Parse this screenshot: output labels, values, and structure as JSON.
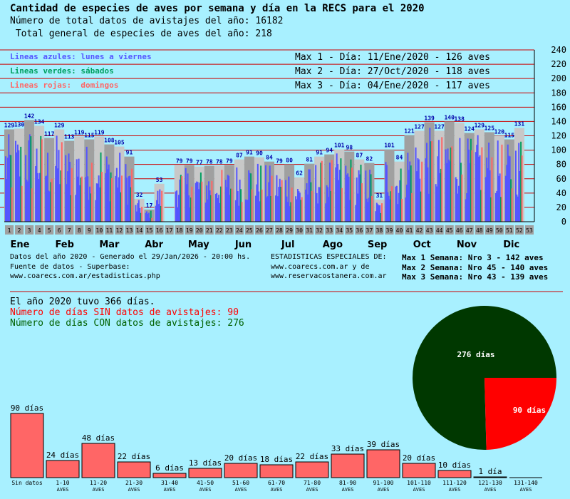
{
  "header": {
    "title": "Cantidad de especies de aves por semana y día en la RECS para el 2020",
    "line2": "Número de total datos de avistajes del año: 16182",
    "line3": " Total general de especies de aves del año: 218"
  },
  "legend": {
    "blue": "Lineas azules: lunes a viernes",
    "green": "Lineas verdes: sábados",
    "red": "Lineas rojas:  domingos"
  },
  "max_days": [
    "Max 1 - Día: 11/Ene/2020 - 126 aves",
    "Max 2 - Día: 27/Oct/2020 - 118 aves",
    "Max 3 - Día: 04/Ene/2020 - 117 aves"
  ],
  "colors": {
    "background": "#a8f0ff",
    "blue": "#5555ff",
    "green": "#00a060",
    "red": "#ff6666",
    "bar_dark": "#a0a0a0",
    "bar_light": "#c8c8c8",
    "gridline": "#cc0000",
    "pie_green": "#003800",
    "pie_red": "#ff0000",
    "hist_bar": "#ff6666"
  },
  "chart_data": [
    {
      "type": "bar",
      "ylim": [
        0,
        240
      ],
      "yticks": [
        0,
        20,
        40,
        60,
        80,
        100,
        120,
        140,
        160,
        180,
        200,
        220,
        240
      ],
      "weeks": [
        "1",
        "2",
        "3",
        "4",
        "5",
        "6",
        "7",
        "8",
        "9",
        "10",
        "11",
        "12",
        "13",
        "14",
        "15",
        "16",
        "17",
        "18",
        "19",
        "20",
        "21",
        "22",
        "23",
        "24",
        "25",
        "26",
        "27",
        "28",
        "29",
        "30",
        "31",
        "32",
        "33",
        "34",
        "35",
        "36",
        "37",
        "38",
        "39",
        "40",
        "41",
        "42",
        "43",
        "44",
        "45",
        "46",
        "47",
        "48",
        "49",
        "50",
        "51",
        "52",
        "53"
      ],
      "weekly_species": [
        129,
        130,
        142,
        134,
        117,
        129,
        113,
        119,
        115,
        119,
        108,
        105,
        91,
        32,
        17,
        53,
        0,
        79,
        79,
        77,
        78,
        78,
        79,
        87,
        91,
        90,
        84,
        79,
        80,
        62,
        81,
        91,
        94,
        101,
        98,
        87,
        82,
        31,
        101,
        84,
        121,
        127,
        139,
        127,
        140,
        138,
        124,
        129,
        125,
        120,
        115,
        131,
        0
      ],
      "weekly_labels": [
        "129",
        "130",
        "142",
        "134",
        "117",
        "129",
        "113",
        "119",
        "115",
        "119",
        "108",
        "105",
        "91",
        "32",
        "17",
        "53",
        "",
        "79",
        "79",
        "77",
        "78",
        "78",
        "79",
        "87",
        "91",
        "90",
        "84",
        "79",
        "80",
        "62",
        "81",
        "91",
        "94",
        "101",
        "98",
        "87",
        "82",
        "31",
        "101",
        "84",
        "121",
        "127",
        "139",
        "127",
        "140",
        "138",
        "124",
        "129",
        "125",
        "120",
        "115",
        "131",
        ""
      ],
      "months": [
        "Ene",
        "Feb",
        "Mar",
        "Abr",
        "May",
        "Jun",
        "Jul",
        "Ago",
        "Sep",
        "Oct",
        "Nov",
        "Dic"
      ]
    },
    {
      "type": "pie",
      "slices": [
        {
          "label": "276 días",
          "value": 276
        },
        {
          "label": "90 días",
          "value": 90
        }
      ]
    },
    {
      "type": "bar",
      "categories": [
        "Sin datos",
        "1-10 AVES",
        "11-20 AVES",
        "21-30 AVES",
        "31-40 AVES",
        "41-50 AVES",
        "51-60 AVES",
        "61-70 AVES",
        "71-80 AVES",
        "81-90 AVES",
        "91-100 AVES",
        "101-110 AVES",
        "111-120 AVES",
        "121-130 AVES",
        "131-140 AVES"
      ],
      "cat_top": [
        "Sin datos",
        "1-10",
        "11-20",
        "21-30",
        "31-40",
        "41-50",
        "51-60",
        "61-70",
        "71-80",
        "81-90",
        "91-100",
        "101-110",
        "111-120",
        "121-130",
        "131-140"
      ],
      "cat_bottom": [
        "",
        "AVES",
        "AVES",
        "AVES",
        "AVES",
        "AVES",
        "AVES",
        "AVES",
        "AVES",
        "AVES",
        "AVES",
        "AVES",
        "AVES",
        "AVES",
        "AVES"
      ],
      "values": [
        90,
        24,
        48,
        22,
        6,
        13,
        20,
        18,
        22,
        33,
        39,
        20,
        10,
        1,
        0
      ],
      "value_labels": [
        "90 días",
        "24 días",
        "48 días",
        "22 días",
        "6 días",
        "13 días",
        "20 días",
        "18 días",
        "22 días",
        "33 días",
        "39 días",
        "20 días",
        "10 días",
        "1 día",
        ""
      ]
    }
  ],
  "footer_left": [
    "Datos del año 2020 - Generado el 29/Jan/2026 - 20:00 hs.",
    "Fuente de datos - Superbase:",
    "www.coarecs.com.ar/estadisticas.php"
  ],
  "footer_mid": [
    "ESTADISTICAS ESPECIALES DE:",
    "www.coarecs.com.ar y de",
    "www.reservacostanera.com.ar"
  ],
  "max_weeks": [
    "Max 1 Semana: Nro 3 - 142 aves",
    "Max 2 Semana: Nro 45 - 140 aves",
    "Max 3 Semana: Nro 43 - 139 aves"
  ],
  "summary": {
    "line1": "El año 2020 tuvo 366 días.",
    "line2": "Número de días SIN datos de avistajes: 90",
    "line3": "Número de días CON datos de avistajes: 276"
  }
}
